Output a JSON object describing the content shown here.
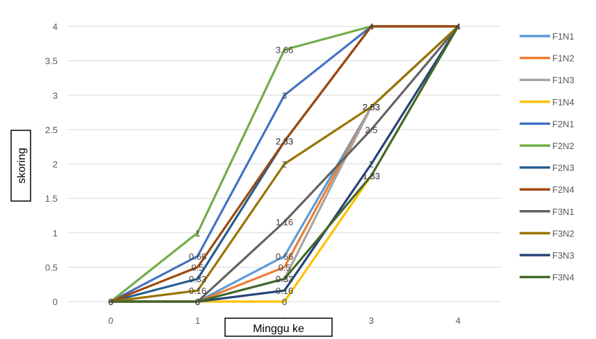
{
  "chart_data": {
    "type": "line",
    "title": "",
    "xlabel": "Minggu ke",
    "ylabel": "skoring",
    "x": [
      0,
      1,
      2,
      3,
      4
    ],
    "ylim": [
      0,
      4
    ],
    "yticks": [
      "0",
      "0.5",
      "1",
      "1.5",
      "2",
      "2.5",
      "3",
      "3.5",
      "4"
    ],
    "xticks": [
      "0",
      "1",
      "2",
      "3",
      "4"
    ],
    "grid": true,
    "legend": "right",
    "series": [
      {
        "name": "F1N1",
        "color": "#5B9BD5",
        "values": [
          0,
          0,
          0.66,
          2.83,
          4
        ]
      },
      {
        "name": "F1N2",
        "color": "#ED7D31",
        "values": [
          0,
          0,
          0.5,
          2.83,
          4
        ]
      },
      {
        "name": "F1N3",
        "color": "#A5A5A5",
        "values": [
          0,
          0,
          0.33,
          2.83,
          4
        ]
      },
      {
        "name": "F1N4",
        "color": "#FFC000",
        "values": [
          0,
          0,
          0,
          1.83,
          4
        ]
      },
      {
        "name": "F2N1",
        "color": "#4472C4",
        "values": [
          0,
          0.66,
          3,
          4,
          4
        ]
      },
      {
        "name": "F2N2",
        "color": "#70AD47",
        "values": [
          0,
          1,
          3.66,
          4,
          4
        ]
      },
      {
        "name": "F2N3",
        "color": "#255E91",
        "values": [
          0,
          0.33,
          2.33,
          4,
          4
        ]
      },
      {
        "name": "F2N4",
        "color": "#9E480E",
        "values": [
          0,
          0.5,
          2.33,
          4,
          4
        ]
      },
      {
        "name": "F3N1",
        "color": "#636363",
        "values": [
          0,
          0,
          1.16,
          2.5,
          4
        ]
      },
      {
        "name": "F3N2",
        "color": "#997300",
        "values": [
          0,
          0.16,
          2,
          2.83,
          4
        ]
      },
      {
        "name": "F3N3",
        "color": "#264478",
        "values": [
          0,
          0,
          0.16,
          2,
          4
        ]
      },
      {
        "name": "F3N4",
        "color": "#43682B",
        "values": [
          0,
          0,
          0.33,
          1.83,
          4
        ]
      }
    ]
  }
}
